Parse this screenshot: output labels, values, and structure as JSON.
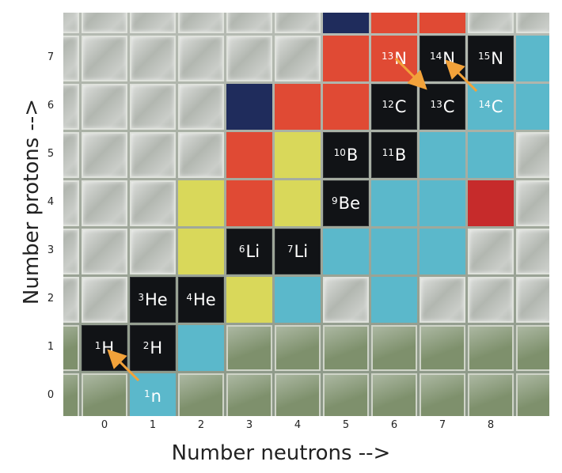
{
  "axes": {
    "x_title": "Number neutrons -->",
    "y_title": "Number protons -->",
    "x_ticks": [
      "0",
      "1",
      "2",
      "3",
      "4",
      "5",
      "6",
      "7",
      "8"
    ],
    "y_ticks": [
      "0",
      "1",
      "2",
      "3",
      "4",
      "5",
      "6",
      "7"
    ]
  },
  "nuclides": [
    {
      "id": "n1",
      "mass": "1",
      "symbol": "n",
      "N": 1,
      "Z": 0,
      "color": "blue"
    },
    {
      "id": "h1",
      "mass": "1",
      "symbol": "H",
      "N": 0,
      "Z": 1,
      "color": "black"
    },
    {
      "id": "h2",
      "mass": "2",
      "symbol": "H",
      "N": 1,
      "Z": 1,
      "color": "black"
    },
    {
      "id": "he3",
      "mass": "3",
      "symbol": "He",
      "N": 1,
      "Z": 2,
      "color": "black"
    },
    {
      "id": "he4",
      "mass": "4",
      "symbol": "He",
      "N": 2,
      "Z": 2,
      "color": "black"
    },
    {
      "id": "li6",
      "mass": "6",
      "symbol": "Li",
      "N": 3,
      "Z": 3,
      "color": "black"
    },
    {
      "id": "li7",
      "mass": "7",
      "symbol": "Li",
      "N": 4,
      "Z": 3,
      "color": "black"
    },
    {
      "id": "be9",
      "mass": "9",
      "symbol": "Be",
      "N": 5,
      "Z": 4,
      "color": "black"
    },
    {
      "id": "b10",
      "mass": "10",
      "symbol": "B",
      "N": 5,
      "Z": 5,
      "color": "black"
    },
    {
      "id": "b11",
      "mass": "11",
      "symbol": "B",
      "N": 6,
      "Z": 5,
      "color": "black"
    },
    {
      "id": "c12",
      "mass": "12",
      "symbol": "C",
      "N": 6,
      "Z": 6,
      "color": "black"
    },
    {
      "id": "c13",
      "mass": "13",
      "symbol": "C",
      "N": 7,
      "Z": 6,
      "color": "black"
    },
    {
      "id": "c14",
      "mass": "14",
      "symbol": "C",
      "N": 8,
      "Z": 6,
      "color": "blue"
    },
    {
      "id": "n13",
      "mass": "13",
      "symbol": "N",
      "N": 6,
      "Z": 7,
      "color": "red"
    },
    {
      "id": "n14",
      "mass": "14",
      "symbol": "N",
      "N": 7,
      "Z": 7,
      "color": "black"
    },
    {
      "id": "n15",
      "mass": "15",
      "symbol": "N",
      "N": 8,
      "Z": 7,
      "color": "black"
    }
  ],
  "tiles": [
    {
      "N": 2,
      "Z": 1,
      "color": "blue"
    },
    {
      "N": 2,
      "Z": 3,
      "color": "yellow"
    },
    {
      "N": 2,
      "Z": 4,
      "color": "yellow"
    },
    {
      "N": 3,
      "Z": 2,
      "color": "yellow"
    },
    {
      "N": 4,
      "Z": 2,
      "color": "blue"
    },
    {
      "N": 3,
      "Z": 4,
      "color": "red"
    },
    {
      "N": 4,
      "Z": 4,
      "color": "yellow"
    },
    {
      "N": 3,
      "Z": 5,
      "color": "red"
    },
    {
      "N": 4,
      "Z": 5,
      "color": "yellow"
    },
    {
      "N": 3,
      "Z": 6,
      "color": "navy"
    },
    {
      "N": 4,
      "Z": 6,
      "color": "red"
    },
    {
      "N": 5,
      "Z": 6,
      "color": "red"
    },
    {
      "N": 5,
      "Z": 7,
      "color": "red"
    },
    {
      "N": 5,
      "Z": 3,
      "color": "blue"
    },
    {
      "N": 6,
      "Z": 3,
      "color": "blue"
    },
    {
      "N": 7,
      "Z": 3,
      "color": "blue"
    },
    {
      "N": 6,
      "Z": 4,
      "color": "blue"
    },
    {
      "N": 7,
      "Z": 4,
      "color": "blue"
    },
    {
      "N": 8,
      "Z": 4,
      "color": "dred"
    },
    {
      "N": 7,
      "Z": 5,
      "color": "blue"
    },
    {
      "N": 8,
      "Z": 5,
      "color": "blue"
    },
    {
      "N": 6,
      "Z": 2,
      "color": "blue"
    },
    {
      "N": 9,
      "Z": 7,
      "color": "blue"
    },
    {
      "N": 9,
      "Z": 6,
      "color": "blue"
    },
    {
      "N": 5,
      "Z": 8,
      "color": "navy"
    },
    {
      "N": 6,
      "Z": 8,
      "color": "red"
    },
    {
      "N": 7,
      "Z": 8,
      "color": "red"
    }
  ],
  "arrows": [
    {
      "from": "n1",
      "to": "h1"
    },
    {
      "from": "n13",
      "to": "c13"
    },
    {
      "from": "c14",
      "to": "n14"
    }
  ],
  "colors": {
    "black": "#111316",
    "red": "#e04a34",
    "dred": "#c62b2b",
    "yellow": "#d9d85a",
    "blue": "#5bb8cb",
    "navy": "#1f2c5c",
    "arrow": "#f2a23a"
  }
}
